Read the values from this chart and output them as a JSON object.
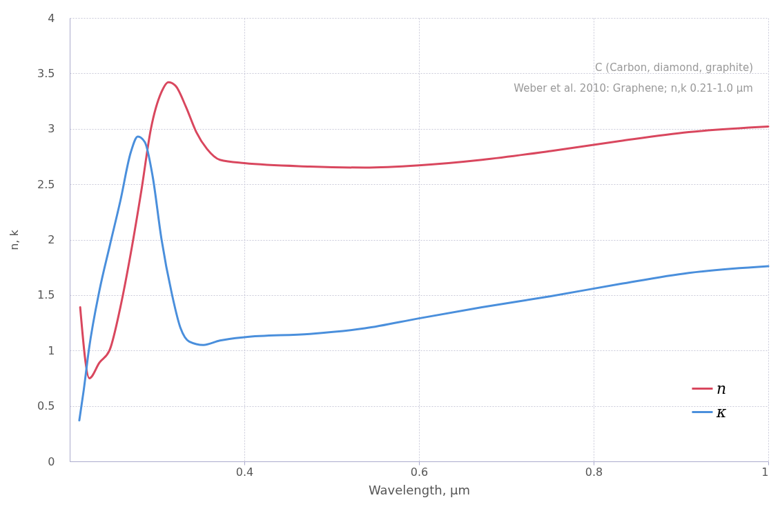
{
  "chart_data": {
    "type": "line",
    "xlabel": "Wavelength, µm",
    "ylabel": "n, k",
    "annotations": [
      "C (Carbon, diamond, graphite)",
      "Weber et al. 2010: Graphene; n,k 0.21-1.0 µm"
    ],
    "xlim": [
      0.2,
      1.0
    ],
    "xticks": [
      0.4,
      0.6,
      0.8,
      {
        "value": 1.0,
        "label": "1"
      }
    ],
    "ylim": [
      0,
      4
    ],
    "yticks": [
      0,
      0.5,
      1,
      1.5,
      2,
      2.5,
      3,
      3.5,
      4
    ],
    "grid": true,
    "legend": "bottom right",
    "series": [
      {
        "name": "n",
        "color": "#d9475e",
        "x": [
          0.212,
          0.2225,
          0.234,
          0.246,
          0.258,
          0.27,
          0.282,
          0.293,
          0.305,
          0.313,
          0.321,
          0.333,
          0.345,
          0.357,
          0.372,
          0.4,
          0.475,
          0.538,
          0.6,
          0.672,
          0.751,
          0.83,
          0.909,
          1.0
        ],
        "values": [
          1.39,
          0.75,
          0.89,
          1.01,
          1.39,
          1.88,
          2.44,
          3.0,
          3.33,
          3.42,
          3.39,
          3.2,
          2.97,
          2.82,
          2.72,
          2.69,
          2.66,
          2.65,
          2.67,
          2.72,
          2.8,
          2.89,
          2.97,
          3.02
        ]
      },
      {
        "name": "κ",
        "color": "#4a8fdc",
        "x": [
          0.211,
          0.216,
          0.222,
          0.234,
          0.246,
          0.258,
          0.27,
          0.278,
          0.286,
          0.295,
          0.305,
          0.317,
          0.327,
          0.337,
          0.353,
          0.372,
          0.4,
          0.475,
          0.538,
          0.6,
          0.672,
          0.751,
          0.83,
          0.909,
          1.0
        ],
        "values": [
          0.37,
          0.64,
          1.01,
          1.54,
          1.95,
          2.35,
          2.79,
          2.93,
          2.88,
          2.57,
          2.01,
          1.51,
          1.2,
          1.08,
          1.05,
          1.09,
          1.12,
          1.15,
          1.2,
          1.29,
          1.39,
          1.49,
          1.6,
          1.7,
          1.76
        ]
      }
    ]
  }
}
